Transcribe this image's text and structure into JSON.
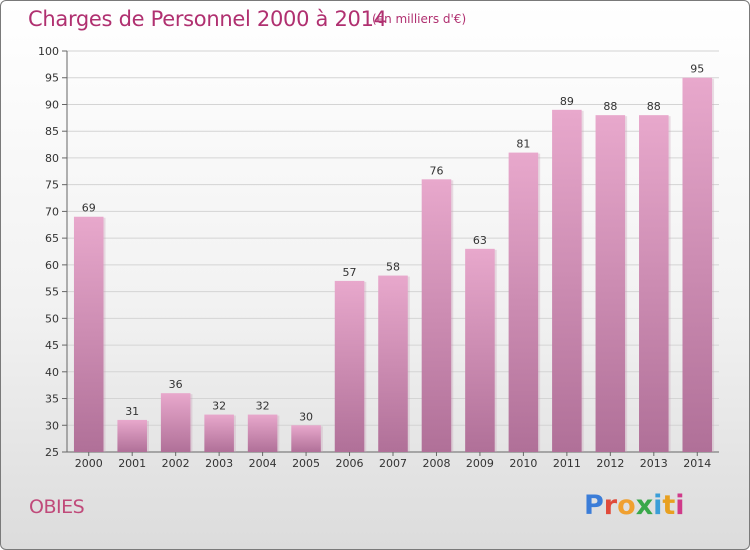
{
  "title": "Charges de Personnel 2000 à 2014",
  "subtitle": "(en milliers d'€)",
  "commune": "OBIES",
  "logo": {
    "letters": [
      {
        "ch": "P",
        "color": "#3b7dd8"
      },
      {
        "ch": "r",
        "color": "#e04a3a"
      },
      {
        "ch": "o",
        "color": "#f0a030"
      },
      {
        "ch": "x",
        "color": "#39a84a"
      },
      {
        "ch": "i",
        "color": "#3b9ed8"
      },
      {
        "ch": "t",
        "color": "#e8a020"
      },
      {
        "ch": "i",
        "color": "#d03a8a"
      }
    ]
  },
  "colors": {
    "title": "#b03070",
    "bar_top": "#e8a8cc",
    "bar_bottom": "#b07098",
    "grid": "#d4d4d4",
    "axis": "#666666"
  },
  "chart_data": {
    "type": "bar",
    "categories": [
      "2000",
      "2001",
      "2002",
      "2003",
      "2004",
      "2005",
      "2006",
      "2007",
      "2008",
      "2009",
      "2010",
      "2011",
      "2012",
      "2013",
      "2014"
    ],
    "values": [
      69,
      31,
      36,
      32,
      32,
      30,
      57,
      58,
      76,
      63,
      81,
      89,
      88,
      88,
      95
    ],
    "title": "Charges de Personnel 2000 à 2014",
    "subtitle": "(en milliers d'€)",
    "ylim": [
      25,
      100
    ],
    "yticks": [
      25,
      30,
      35,
      40,
      45,
      50,
      55,
      60,
      65,
      70,
      75,
      80,
      85,
      90,
      95,
      100
    ],
    "grid": true,
    "data_labels": true
  }
}
